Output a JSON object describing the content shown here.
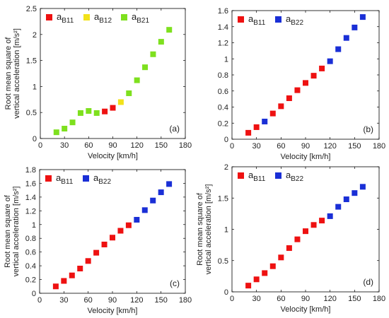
{
  "chart_data": [
    {
      "type": "scatter",
      "panel_label": "(a)",
      "xlabel": "Velocity [km/h]",
      "ylabel_line1": "Root mean square of",
      "ylabel_line2": "vertical acceleration [m/s²]",
      "xlim": [
        0,
        180
      ],
      "ylim": [
        0,
        2.5
      ],
      "xticks": [
        "0",
        "30",
        "60",
        "90",
        "120",
        "150",
        "180"
      ],
      "yticks": [
        "0",
        "0.5",
        "1",
        "1.5",
        "2",
        "2.5"
      ],
      "series": [
        {
          "name": "aB11",
          "label_main": "a",
          "label_sub": "B11",
          "color": "#ee1111",
          "points": [
            [
              80,
              0.52
            ],
            [
              90,
              0.59
            ]
          ]
        },
        {
          "name": "aB12",
          "label_main": "a",
          "label_sub": "B12",
          "color": "#f2e21a",
          "points": [
            [
              100,
              0.7
            ]
          ]
        },
        {
          "name": "aB21",
          "label_main": "a",
          "label_sub": "B21",
          "color": "#7ee01e",
          "points": [
            [
              20,
              0.12
            ],
            [
              30,
              0.19
            ],
            [
              40,
              0.31
            ],
            [
              50,
              0.49
            ],
            [
              60,
              0.53
            ],
            [
              70,
              0.49
            ],
            [
              110,
              0.87
            ],
            [
              120,
              1.12
            ],
            [
              130,
              1.37
            ],
            [
              140,
              1.62
            ],
            [
              150,
              1.86
            ],
            [
              160,
              2.09
            ]
          ]
        }
      ]
    },
    {
      "type": "scatter",
      "panel_label": "(b)",
      "xlabel": "Velocity [km/h]",
      "ylabel_line1": "",
      "ylabel_line2": "",
      "xlim": [
        0,
        180
      ],
      "ylim": [
        0,
        1.6
      ],
      "xticks": [
        "0",
        "30",
        "60",
        "90",
        "120",
        "150",
        "180"
      ],
      "yticks": [
        "0",
        "0.2",
        "0.4",
        "0.6",
        "0.8",
        "1",
        "1.2",
        "1.4",
        "1.6"
      ],
      "series": [
        {
          "name": "aB11",
          "label_main": "a",
          "label_sub": "B11",
          "color": "#ee1111",
          "points": [
            [
              20,
              0.08
            ],
            [
              30,
              0.15
            ],
            [
              50,
              0.32
            ],
            [
              60,
              0.41
            ],
            [
              70,
              0.51
            ],
            [
              80,
              0.61
            ],
            [
              90,
              0.7
            ],
            [
              100,
              0.79
            ],
            [
              110,
              0.88
            ]
          ]
        },
        {
          "name": "aB22",
          "label_main": "a",
          "label_sub": "B22",
          "color": "#1a2fd6",
          "points": [
            [
              40,
              0.22
            ],
            [
              120,
              0.97
            ],
            [
              130,
              1.12
            ],
            [
              140,
              1.26
            ],
            [
              150,
              1.39
            ],
            [
              160,
              1.52
            ]
          ]
        }
      ]
    },
    {
      "type": "scatter",
      "panel_label": "(c)",
      "xlabel": "Velocity [km/h]",
      "ylabel_line1": "Root mean square of",
      "ylabel_line2": "vertical acceleration [m/s²]",
      "xlim": [
        0,
        180
      ],
      "ylim": [
        0,
        1.8
      ],
      "xticks": [
        "0",
        "30",
        "60",
        "90",
        "120",
        "150",
        "180"
      ],
      "yticks": [
        "0",
        "0.2",
        "0.4",
        "0.6",
        "0.8",
        "1",
        "1.2",
        "1.4",
        "1.6",
        "1.8"
      ],
      "series": [
        {
          "name": "aB11",
          "label_main": "a",
          "label_sub": "B11",
          "color": "#ee1111",
          "points": [
            [
              20,
              0.1
            ],
            [
              30,
              0.18
            ],
            [
              40,
              0.26
            ],
            [
              50,
              0.36
            ],
            [
              60,
              0.47
            ],
            [
              70,
              0.59
            ],
            [
              80,
              0.71
            ],
            [
              90,
              0.81
            ],
            [
              100,
              0.91
            ],
            [
              110,
              0.99
            ]
          ]
        },
        {
          "name": "aB22",
          "label_main": "a",
          "label_sub": "B22",
          "color": "#1a2fd6",
          "points": [
            [
              120,
              1.07
            ],
            [
              130,
              1.21
            ],
            [
              140,
              1.35
            ],
            [
              150,
              1.47
            ],
            [
              160,
              1.59
            ]
          ]
        }
      ]
    },
    {
      "type": "scatter",
      "panel_label": "(d)",
      "xlabel": "Velocity [km/h]",
      "ylabel_line1": "Root mean square of",
      "ylabel_line2": "vertical acceleration [m/s²]",
      "xlim": [
        0,
        180
      ],
      "ylim": [
        0,
        2
      ],
      "xticks": [
        "0",
        "30",
        "60",
        "90",
        "120",
        "150",
        "180"
      ],
      "yticks": [
        "0",
        "0.5",
        "1",
        "1.5",
        "2"
      ],
      "series": [
        {
          "name": "aB11",
          "label_main": "a",
          "label_sub": "B11",
          "color": "#ee1111",
          "points": [
            [
              20,
              0.1
            ],
            [
              30,
              0.2
            ],
            [
              40,
              0.3
            ],
            [
              50,
              0.41
            ],
            [
              60,
              0.55
            ],
            [
              70,
              0.7
            ],
            [
              80,
              0.84
            ],
            [
              90,
              0.97
            ],
            [
              100,
              1.07
            ],
            [
              110,
              1.14
            ]
          ]
        },
        {
          "name": "aB22",
          "label_main": "a",
          "label_sub": "B22",
          "color": "#1a2fd6",
          "points": [
            [
              120,
              1.21
            ],
            [
              130,
              1.36
            ],
            [
              140,
              1.48
            ],
            [
              150,
              1.58
            ],
            [
              160,
              1.68
            ]
          ]
        }
      ]
    }
  ]
}
